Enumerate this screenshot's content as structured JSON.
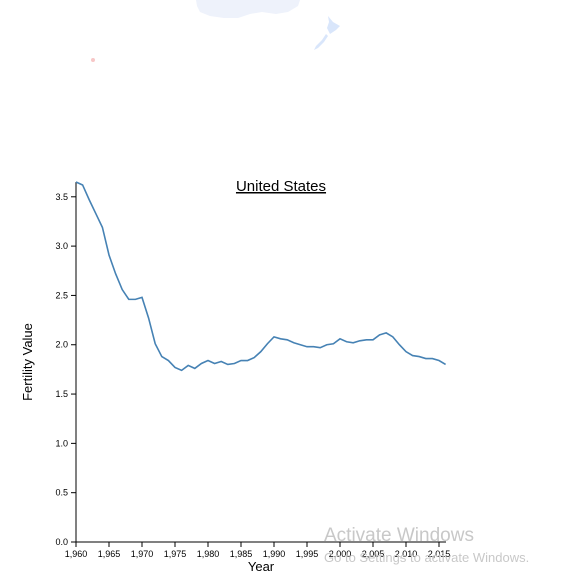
{
  "chart_data": {
    "type": "line",
    "title": "United States",
    "xlabel": "Year",
    "ylabel": "Fertility Value",
    "xlim": [
      1960,
      2016
    ],
    "ylim": [
      0,
      3.65
    ],
    "x_ticks": [
      1960,
      1965,
      1970,
      1975,
      1980,
      1985,
      1990,
      1995,
      2000,
      2005,
      2010,
      2015
    ],
    "x_tick_labels": [
      "1,960",
      "1,965",
      "1,970",
      "1,975",
      "1,980",
      "1,985",
      "1,990",
      "1,995",
      "2,000",
      "2,005",
      "2,010",
      "2,015"
    ],
    "y_ticks": [
      0,
      0.5,
      1.0,
      1.5,
      2.0,
      2.5,
      3.0,
      3.5
    ],
    "y_tick_labels": [
      "0.0",
      "0.5",
      "1.0",
      "1.5",
      "2.0",
      "2.5",
      "3.0",
      "3.5"
    ],
    "grid": false,
    "line_color": "#4682b4",
    "series": [
      {
        "x": [
          1960,
          1961,
          1962,
          1963,
          1964,
          1965,
          1966,
          1967,
          1968,
          1969,
          1970,
          1971,
          1972,
          1973,
          1974,
          1975,
          1976,
          1977,
          1978,
          1979,
          1980,
          1981,
          1982,
          1983,
          1984,
          1985,
          1986,
          1987,
          1988,
          1989,
          1990,
          1991,
          1992,
          1993,
          1994,
          1995,
          1996,
          1997,
          1998,
          1999,
          2000,
          2001,
          2002,
          2003,
          2004,
          2005,
          2006,
          2007,
          2008,
          2009,
          2010,
          2011,
          2012,
          2013,
          2014,
          2015,
          2016
        ],
        "values": [
          3.65,
          3.62,
          3.47,
          3.33,
          3.19,
          2.91,
          2.72,
          2.56,
          2.46,
          2.46,
          2.48,
          2.27,
          2.01,
          1.88,
          1.84,
          1.77,
          1.74,
          1.79,
          1.76,
          1.81,
          1.84,
          1.81,
          1.83,
          1.8,
          1.81,
          1.84,
          1.84,
          1.87,
          1.93,
          2.01,
          2.08,
          2.06,
          2.05,
          2.02,
          2.0,
          1.98,
          1.98,
          1.97,
          2.0,
          2.01,
          2.06,
          2.03,
          2.02,
          2.04,
          2.05,
          2.05,
          2.1,
          2.12,
          2.08,
          2.0,
          1.93,
          1.89,
          1.88,
          1.86,
          1.86,
          1.84,
          1.8
        ]
      }
    ]
  },
  "map_colors": {
    "land": "#eef2fb",
    "island": "#d9e6fb",
    "dot": "#f7c7c7"
  },
  "watermark": {
    "title": "Activate Windows",
    "subtitle": "Go to Settings to activate Windows."
  }
}
